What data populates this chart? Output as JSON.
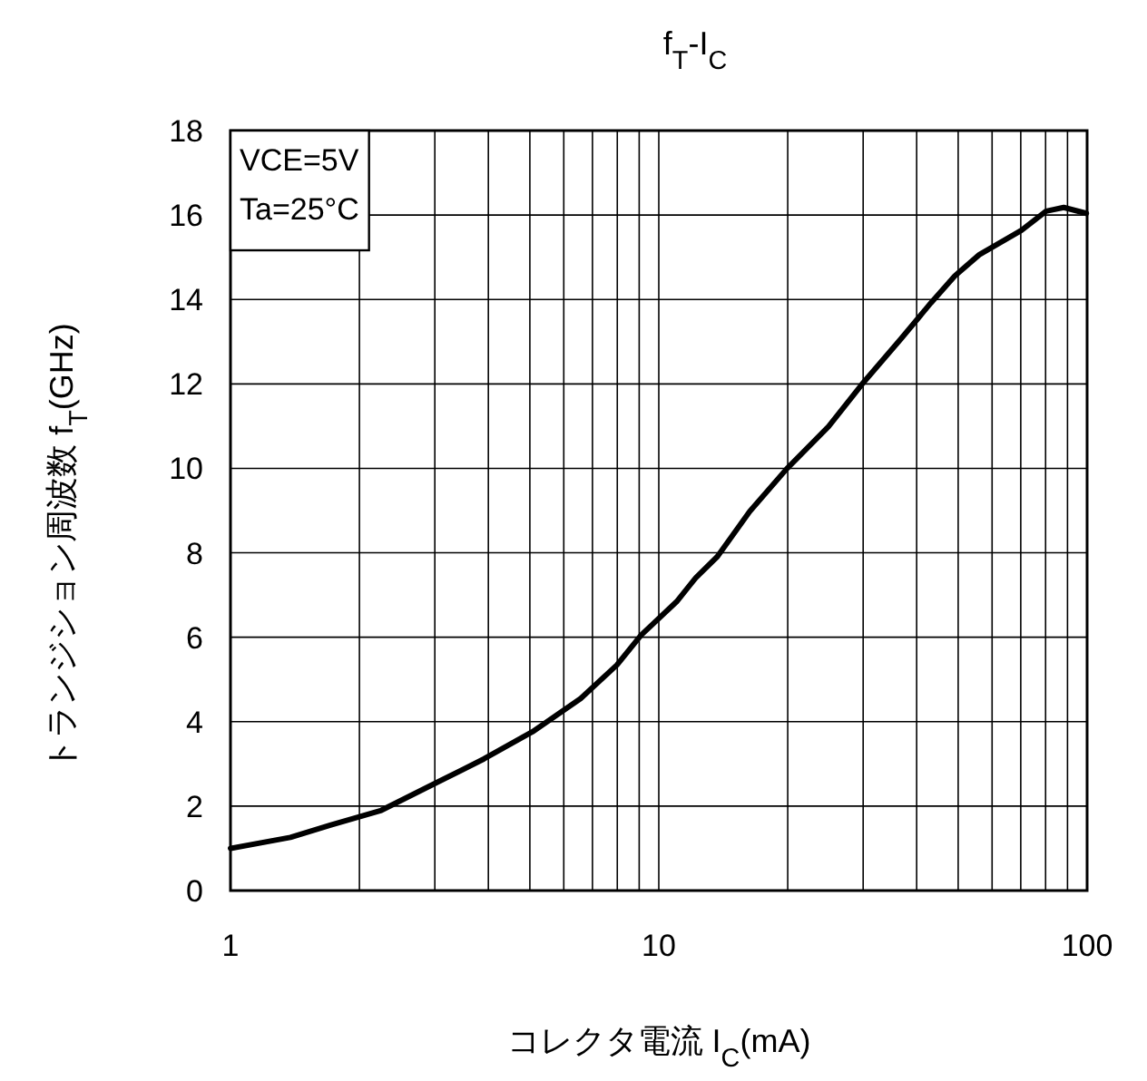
{
  "chart_data": {
    "type": "line",
    "title": "f$_{T}$-I$_{C}$",
    "xlabel": "コレクタ電流 I$_{C}$(mA)",
    "ylabel": "トランジション周波数 f$_{T}$(GHz)",
    "annotations": [
      "VCE=5V",
      "Ta=25°C"
    ],
    "log": "x",
    "xlim": [
      1,
      100
    ],
    "xticks": [
      1,
      10,
      100
    ],
    "ylim": [
      0,
      18
    ],
    "yticks": [
      0,
      2,
      4,
      6,
      8,
      10,
      12,
      14,
      16,
      18
    ],
    "grid": true,
    "marker": "none",
    "line_style": "solid",
    "series": [
      {
        "color": "#000000",
        "x": [
          1,
          1.38,
          1.71,
          2.25,
          3.02,
          3.91,
          5.07,
          6.57,
          7.98,
          9.09,
          11.0,
          12.2,
          13.7,
          16.3,
          19.9,
          24.9,
          29.8,
          36.7,
          43.2,
          49.1,
          56.0,
          70.3,
          80.2,
          88.2,
          99.6
        ],
        "values": [
          1.0,
          1.26,
          1.55,
          1.9,
          2.55,
          3.12,
          3.76,
          4.55,
          5.34,
          6.05,
          6.84,
          7.41,
          7.91,
          8.98,
          9.99,
          10.99,
          11.99,
          13.06,
          13.92,
          14.56,
          15.06,
          15.64,
          16.09,
          16.18,
          16.04
        ]
      }
    ]
  }
}
